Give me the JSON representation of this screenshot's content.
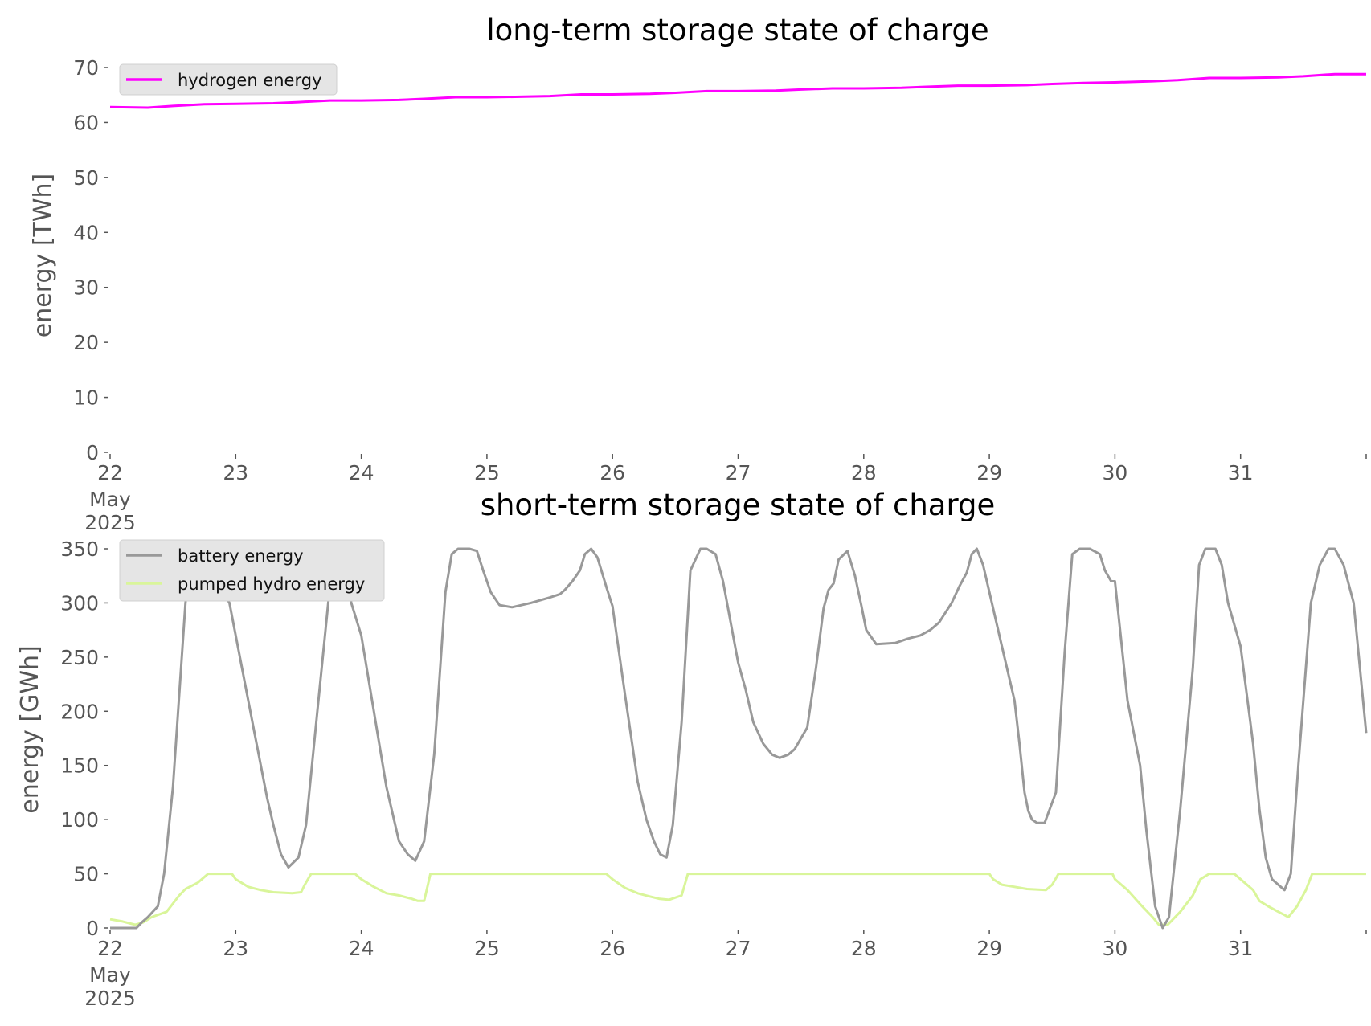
{
  "colors": {
    "hydrogen": "#ff00ff",
    "battery": "#999999",
    "pumped_hydro": "#d9f59a",
    "axis_text": "#555555",
    "legend_bg": "#e5e5e5"
  },
  "x_axis": {
    "tick_labels": [
      "22",
      "23",
      "24",
      "25",
      "26",
      "27",
      "28",
      "29",
      "30",
      "31"
    ],
    "month_label": "May",
    "year_label": "2025"
  },
  "chart_data": [
    {
      "type": "line",
      "title": "long-term storage state of charge",
      "ylabel": "energy [TWh]",
      "xlabel": "",
      "x_unit": "day of May 2025",
      "xlim": [
        22,
        32
      ],
      "ylim": [
        0,
        70
      ],
      "yticks": [
        "0",
        "10",
        "20",
        "30",
        "40",
        "50",
        "60",
        "70"
      ],
      "grid": false,
      "legend_position": "top-left",
      "series": [
        {
          "name": "hydrogen energy",
          "color": "#ff00ff",
          "x": [
            22.0,
            22.3,
            22.5,
            22.75,
            23.0,
            23.3,
            23.5,
            23.75,
            24.0,
            24.3,
            24.5,
            24.75,
            25.0,
            25.3,
            25.5,
            25.75,
            26.0,
            26.3,
            26.5,
            26.75,
            27.0,
            27.3,
            27.5,
            27.75,
            28.0,
            28.3,
            28.5,
            28.75,
            29.0,
            29.3,
            29.5,
            29.75,
            30.0,
            30.3,
            30.5,
            30.75,
            31.0,
            31.3,
            31.5,
            31.75,
            32.0
          ],
          "y": [
            62.8,
            62.7,
            63.0,
            63.3,
            63.4,
            63.5,
            63.7,
            64.0,
            64.0,
            64.1,
            64.3,
            64.6,
            64.6,
            64.7,
            64.8,
            65.1,
            65.1,
            65.2,
            65.4,
            65.7,
            65.7,
            65.8,
            66.0,
            66.2,
            66.2,
            66.3,
            66.5,
            66.7,
            66.7,
            66.8,
            67.0,
            67.2,
            67.3,
            67.5,
            67.7,
            68.1,
            68.1,
            68.2,
            68.4,
            68.8,
            68.8
          ]
        }
      ]
    },
    {
      "type": "line",
      "title": "short-term storage state of charge",
      "ylabel": "energy [GWh]",
      "xlabel": "",
      "x_unit": "day of May 2025",
      "xlim": [
        22,
        32
      ],
      "ylim": [
        0,
        350
      ],
      "yticks": [
        "0",
        "50",
        "100",
        "150",
        "200",
        "250",
        "300",
        "350"
      ],
      "grid": false,
      "legend_position": "top-left",
      "series": [
        {
          "name": "battery energy",
          "color": "#999999",
          "x": [
            22.0,
            22.21,
            22.25,
            22.3,
            22.38,
            22.43,
            22.5,
            22.6,
            22.65,
            22.77,
            22.83,
            22.9,
            22.95,
            23.05,
            23.15,
            23.25,
            23.3,
            23.36,
            23.42,
            23.5,
            23.56,
            23.65,
            23.78,
            23.85,
            23.92,
            24.0,
            24.1,
            24.2,
            24.3,
            24.37,
            24.43,
            24.5,
            24.58,
            24.67,
            24.72,
            24.77,
            24.86,
            24.92,
            24.97,
            25.03,
            25.1,
            25.2,
            25.35,
            25.5,
            25.58,
            25.62,
            25.68,
            25.74,
            25.78,
            25.83,
            25.88,
            25.95,
            26.0,
            26.1,
            26.2,
            26.27,
            26.33,
            26.38,
            26.43,
            26.48,
            26.55,
            26.62,
            26.7,
            26.75,
            26.82,
            26.88,
            26.96,
            27.0,
            27.06,
            27.12,
            27.2,
            27.27,
            27.33,
            27.4,
            27.45,
            27.55,
            27.62,
            27.68,
            27.72,
            27.76,
            27.8,
            27.87,
            27.93,
            27.98,
            28.02,
            28.1,
            28.25,
            28.35,
            28.45,
            28.53,
            28.6,
            28.7,
            28.76,
            28.82,
            28.86,
            28.9,
            28.95,
            29.0,
            29.1,
            29.2,
            29.24,
            29.28,
            29.31,
            29.34,
            29.38,
            29.44,
            29.53,
            29.6,
            29.66,
            29.72,
            29.8,
            29.88,
            29.92,
            29.97,
            30.0,
            30.1,
            30.2,
            30.25,
            30.32,
            30.35,
            30.38,
            30.43,
            30.52,
            30.62,
            30.67,
            30.72,
            30.8,
            30.85,
            30.9,
            31.0,
            31.1,
            31.15,
            31.2,
            31.25,
            31.3,
            31.35,
            31.4,
            31.46,
            31.56,
            31.63,
            31.7,
            31.75,
            31.82,
            31.9,
            32.0
          ],
          "y": [
            0,
            0,
            5,
            10,
            20,
            50,
            130,
            300,
            350,
            350,
            340,
            310,
            300,
            240,
            180,
            120,
            95,
            68,
            56,
            65,
            95,
            200,
            350,
            350,
            300,
            270,
            200,
            130,
            80,
            68,
            62,
            80,
            160,
            310,
            345,
            350,
            350,
            348,
            330,
            310,
            298,
            296,
            300,
            305,
            308,
            312,
            320,
            330,
            345,
            350,
            342,
            315,
            297,
            215,
            135,
            100,
            80,
            68,
            65,
            95,
            190,
            330,
            350,
            350,
            345,
            320,
            270,
            245,
            220,
            190,
            170,
            160,
            157,
            160,
            165,
            185,
            240,
            295,
            312,
            318,
            340,
            348,
            325,
            298,
            275,
            262,
            263,
            267,
            270,
            275,
            282,
            300,
            315,
            328,
            345,
            350,
            335,
            310,
            260,
            210,
            170,
            125,
            108,
            100,
            97,
            97,
            125,
            255,
            345,
            350,
            350,
            345,
            330,
            320,
            320,
            210,
            150,
            90,
            20,
            10,
            0,
            10,
            110,
            240,
            335,
            350,
            350,
            335,
            300,
            260,
            170,
            110,
            65,
            45,
            40,
            35,
            50,
            150,
            300,
            335,
            350,
            350,
            335,
            300,
            180
          ]
        },
        {
          "name": "pumped hydro energy",
          "color": "#d9f59a",
          "x": [
            22.0,
            22.1,
            22.2,
            22.26,
            22.33,
            22.45,
            22.55,
            22.6,
            22.7,
            22.78,
            22.97,
            23.0,
            23.1,
            23.2,
            23.3,
            23.45,
            23.52,
            23.55,
            23.6,
            23.95,
            24.0,
            24.1,
            24.2,
            24.3,
            24.4,
            24.45,
            24.5,
            24.55,
            25.95,
            26.0,
            26.1,
            26.2,
            26.3,
            26.37,
            26.45,
            26.55,
            26.6,
            27.0,
            28.0,
            29.0,
            29.03,
            29.1,
            29.2,
            29.3,
            29.45,
            29.5,
            29.55,
            29.98,
            30.0,
            30.1,
            30.2,
            30.25,
            30.3,
            30.35,
            30.42,
            30.52,
            30.62,
            30.68,
            30.75,
            30.95,
            31.0,
            31.1,
            31.15,
            31.22,
            31.3,
            31.35,
            31.38,
            31.45,
            31.52,
            31.57,
            32.0
          ],
          "y": [
            8,
            6,
            3,
            5,
            10,
            15,
            30,
            36,
            42,
            50,
            50,
            45,
            38,
            35,
            33,
            32,
            33,
            40,
            50,
            50,
            45,
            38,
            32,
            30,
            27,
            25,
            25,
            50,
            50,
            45,
            37,
            32,
            29,
            27,
            26,
            30,
            50,
            50,
            50,
            50,
            45,
            40,
            38,
            36,
            35,
            40,
            50,
            50,
            45,
            35,
            22,
            16,
            10,
            3,
            3,
            15,
            30,
            45,
            50,
            50,
            45,
            35,
            25,
            20,
            15,
            12,
            10,
            20,
            35,
            50,
            50
          ]
        }
      ]
    }
  ]
}
